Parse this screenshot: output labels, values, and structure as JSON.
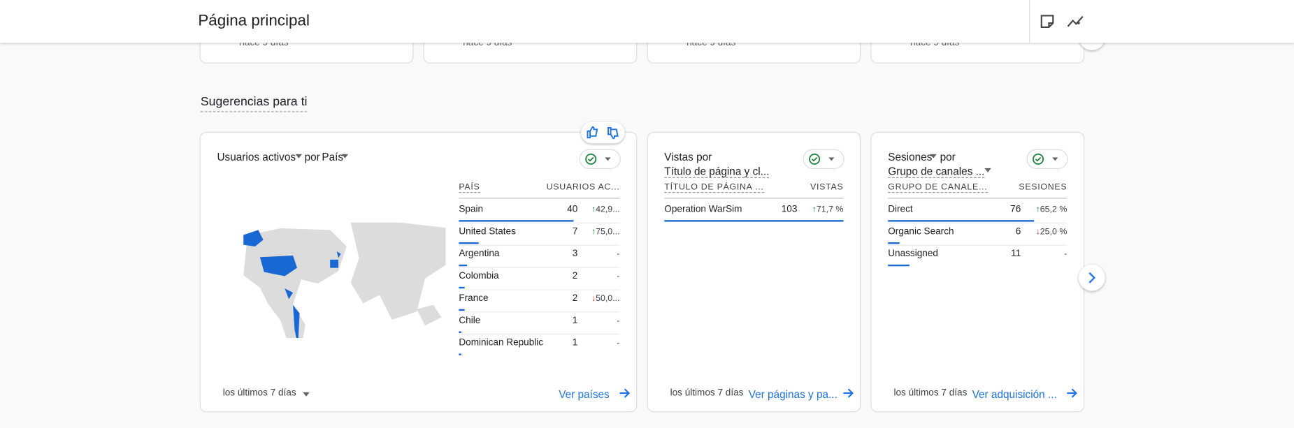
{
  "header": {
    "title": "Página principal"
  },
  "top_cards": [
    "hace 9 días",
    "hace 9 días",
    "hace 9 días",
    "hace 9 días"
  ],
  "section_title": "Sugerencias para ti",
  "cards": [
    {
      "title": [
        "Usuarios activos",
        "por",
        "País"
      ],
      "columns": [
        "PAÍS",
        "USUARIOS AC..."
      ],
      "rows": [
        {
          "name": "Spain",
          "value": 40,
          "change": "42,9...",
          "trend": "up"
        },
        {
          "name": "United States",
          "value": 7,
          "change": "75,0...",
          "trend": "up"
        },
        {
          "name": "Argentina",
          "value": 3,
          "change": "-"
        },
        {
          "name": "Colombia",
          "value": 2,
          "change": "-"
        },
        {
          "name": "France",
          "value": 2,
          "change": "50,0...",
          "trend": "down"
        },
        {
          "name": "Chile",
          "value": 1,
          "change": "-"
        },
        {
          "name": "Dominican Republic",
          "value": 1,
          "change": "-"
        }
      ],
      "date_range": "los últimos 7 días",
      "link": "Ver países"
    },
    {
      "title": [
        "Vistas por",
        "Título de página y cl..."
      ],
      "columns": [
        "TÍTULO DE PÁGINA ...",
        "VISTAS"
      ],
      "rows": [
        {
          "name": "Operation WarSim",
          "value": 103,
          "change": "71,7 %",
          "trend": "up"
        }
      ],
      "date_range": "los últimos 7 días",
      "link": "Ver páginas y pa..."
    },
    {
      "title": [
        "Sesiones",
        "por",
        "Grupo de canales ..."
      ],
      "columns": [
        "GRUPO DE CANALE...",
        "SESIONES"
      ],
      "rows": [
        {
          "name": "Direct",
          "value": 76,
          "change": "65,2 %",
          "trend": "up"
        },
        {
          "name": "Organic Search",
          "value": 6,
          "change": "25,0 %",
          "trend": "down"
        },
        {
          "name": "Unassigned",
          "value": 11,
          "change": "-"
        }
      ],
      "date_range": "los últimos 7 días",
      "link": "Ver adquisición ..."
    }
  ]
}
